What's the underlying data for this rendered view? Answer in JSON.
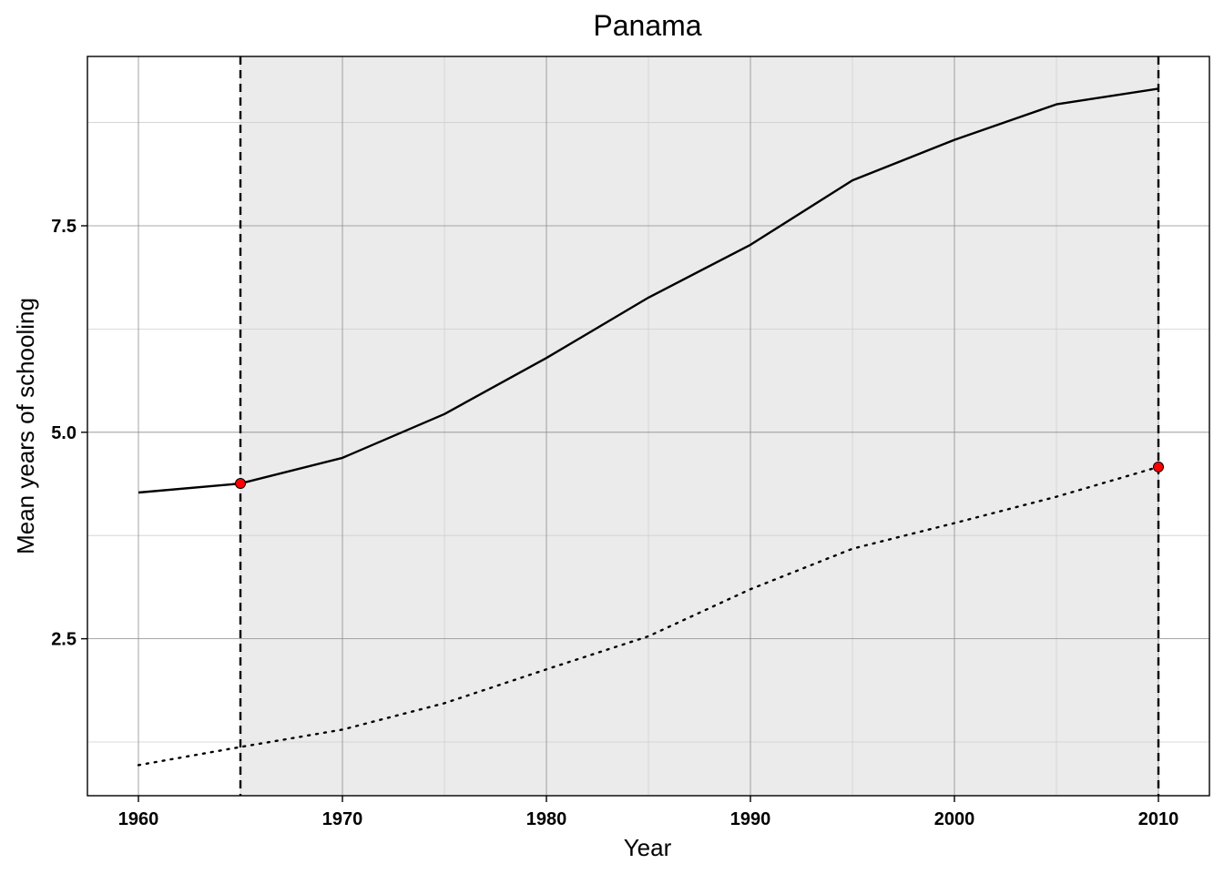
{
  "chart_data": {
    "type": "line",
    "title": "Panama",
    "xlabel": "Year",
    "ylabel": "Mean years of schooling",
    "xlim": [
      1957.5,
      2012.5
    ],
    "ylim": [
      0.6,
      9.55
    ],
    "x_ticks": [
      1960,
      1970,
      1980,
      1990,
      2000,
      2010
    ],
    "x_tick_labels": [
      "1960",
      "1970",
      "1980",
      "1990",
      "2000",
      "2010"
    ],
    "y_ticks": [
      2.5,
      5.0,
      7.5
    ],
    "y_tick_labels": [
      "2.5",
      "5.0",
      "7.5"
    ],
    "x_minor_ticks": [
      1965,
      1975,
      1985,
      1995,
      2005
    ],
    "y_minor_ticks": [
      1.25,
      3.75,
      6.25,
      8.75
    ],
    "grid": true,
    "shaded_region": {
      "x": [
        1965,
        2010
      ],
      "color": "#ebebeb"
    },
    "vertical_lines": [
      1965,
      2010
    ],
    "series": [
      {
        "style": "solid",
        "x": [
          1960,
          1965,
          1970,
          1975,
          1980,
          1985,
          1990,
          1995,
          2000,
          2005,
          2010
        ],
        "values": [
          4.27,
          4.38,
          4.69,
          5.22,
          5.9,
          6.63,
          7.27,
          8.05,
          8.54,
          8.97,
          9.16
        ]
      },
      {
        "style": "dotted",
        "x": [
          1960,
          1965,
          1970,
          1975,
          1980,
          1985,
          1990,
          1995,
          2000,
          2005,
          2010
        ],
        "values": [
          0.97,
          1.19,
          1.4,
          1.72,
          2.13,
          2.53,
          3.1,
          3.59,
          3.9,
          4.22,
          4.58
        ]
      }
    ],
    "highlight_points": [
      {
        "x": 1965,
        "y": 4.38
      },
      {
        "x": 2010,
        "y": 4.58
      }
    ],
    "colors": {
      "line": "#000000",
      "highlight": "#ff0000",
      "grid_major": "#8c8c8c",
      "grid_minor": "#cfcfcf"
    }
  }
}
